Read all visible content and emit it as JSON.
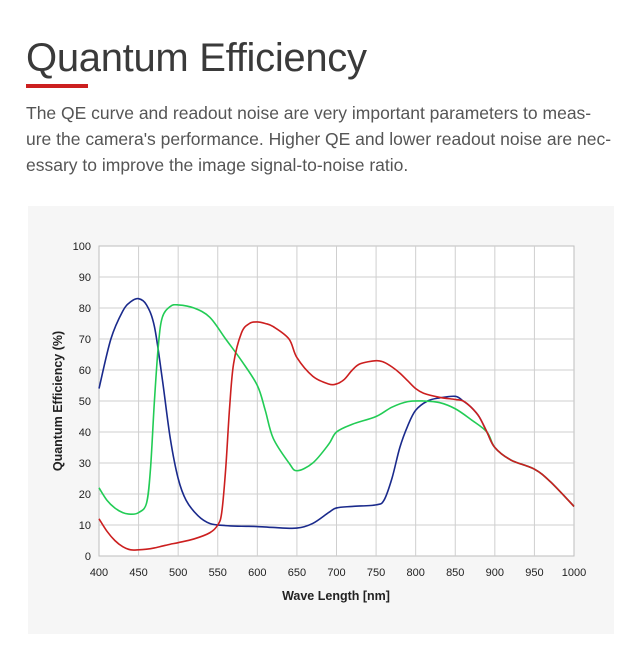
{
  "header": {
    "title": "Quantum Efficiency",
    "description_lines": [
      "The QE curve and readout noise are very important parameters to meas-",
      "ure the camera's performance. Higher QE and lower readout noise are nec-",
      "essary to improve the image signal-to-noise ratio."
    ],
    "accent_color": "#cc1f1f"
  },
  "chart_data": {
    "type": "line",
    "title": "",
    "xlabel": "Wave Length [nm]",
    "ylabel": "Quantum Efficiency (%)",
    "xlim": [
      400,
      1000
    ],
    "ylim": [
      0,
      100
    ],
    "xticks": [
      400,
      450,
      500,
      550,
      600,
      650,
      700,
      750,
      800,
      850,
      900,
      950,
      1000
    ],
    "yticks": [
      0,
      10,
      20,
      30,
      40,
      50,
      60,
      70,
      80,
      90,
      100
    ],
    "grid": true,
    "legend": "none",
    "series": [
      {
        "name": "Blue",
        "color": "#1a2a8c",
        "x": [
          400,
          415,
          430,
          440,
          450,
          460,
          470,
          480,
          490,
          500,
          510,
          525,
          540,
          560,
          580,
          600,
          620,
          650,
          670,
          690,
          700,
          720,
          750,
          760,
          770,
          780,
          790,
          800,
          815,
          830,
          850,
          860,
          870,
          880,
          890,
          900,
          920,
          950,
          970,
          1000
        ],
        "y": [
          54,
          70,
          79,
          82,
          83,
          81,
          74,
          57,
          38,
          25,
          18,
          13,
          10.5,
          9.8,
          9.6,
          9.5,
          9.2,
          9,
          10.5,
          14,
          15.5,
          16,
          16.5,
          18,
          25,
          35,
          42,
          47,
          50,
          51,
          51.5,
          50,
          48,
          45,
          40,
          35,
          31,
          28,
          24,
          16
        ]
      },
      {
        "name": "Green",
        "color": "#22cc55",
        "x": [
          400,
          410,
          420,
          430,
          440,
          450,
          460,
          465,
          470,
          475,
          480,
          490,
          500,
          520,
          540,
          560,
          580,
          600,
          610,
          620,
          640,
          650,
          670,
          690,
          700,
          720,
          750,
          770,
          790,
          810,
          830,
          850,
          870,
          890,
          900,
          920,
          950,
          970,
          1000
        ],
        "y": [
          22,
          18,
          15.5,
          14,
          13.5,
          14,
          17,
          28,
          50,
          68,
          77,
          80.5,
          81,
          80,
          77,
          70,
          63,
          55,
          47,
          38,
          30,
          27.5,
          30,
          36,
          40,
          42.5,
          45,
          48,
          49.8,
          50,
          49.5,
          47.5,
          44,
          40,
          35,
          31,
          28,
          24,
          16
        ]
      },
      {
        "name": "Red",
        "color": "#cc1f1f",
        "x": [
          400,
          410,
          420,
          430,
          440,
          450,
          460,
          470,
          480,
          490,
          500,
          520,
          540,
          550,
          555,
          560,
          565,
          570,
          580,
          590,
          600,
          610,
          620,
          640,
          650,
          670,
          690,
          700,
          710,
          720,
          730,
          750,
          760,
          770,
          780,
          790,
          800,
          810,
          830,
          850,
          860,
          870,
          880,
          890,
          900,
          920,
          950,
          970,
          1000
        ],
        "y": [
          12,
          8,
          5,
          3,
          2,
          2,
          2.2,
          2.6,
          3.2,
          3.8,
          4.3,
          5.5,
          7.5,
          10,
          14,
          28,
          48,
          62,
          72,
          75,
          75.5,
          75,
          74,
          70,
          64,
          58,
          55.5,
          55.5,
          57,
          60,
          62,
          63,
          62.5,
          61,
          59,
          56.5,
          54,
          52.5,
          51.2,
          50.5,
          50,
          48,
          45,
          40,
          35,
          31,
          28,
          24,
          16
        ]
      }
    ]
  }
}
